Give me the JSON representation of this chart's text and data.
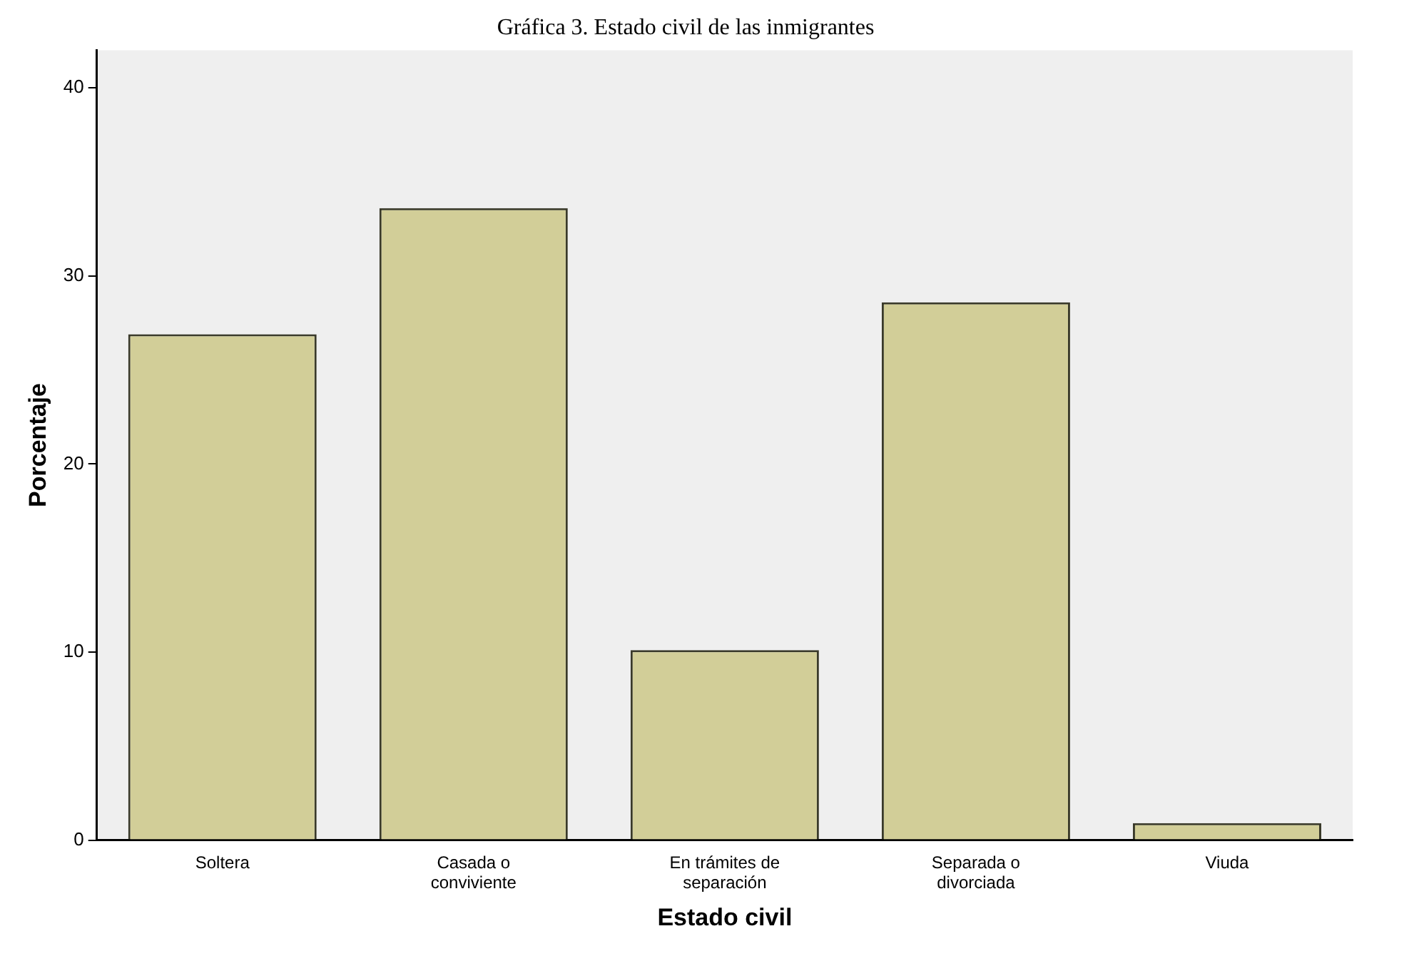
{
  "chart_data": {
    "type": "bar",
    "title": "Gráfica 3. Estado civil de las inmigrantes",
    "xlabel": "Estado civil",
    "ylabel": "Porcentaje",
    "categories": [
      "Soltera",
      "Casada o conviviente",
      "En trámites de separación",
      "Separada o divorciada",
      "Viuda"
    ],
    "values": [
      26.9,
      33.6,
      10.1,
      28.6,
      0.9
    ],
    "color": "#d2ce98",
    "ylim": [
      0,
      42
    ],
    "yticks": [
      0,
      10,
      20,
      30,
      40
    ],
    "grid": false,
    "legend": false
  }
}
